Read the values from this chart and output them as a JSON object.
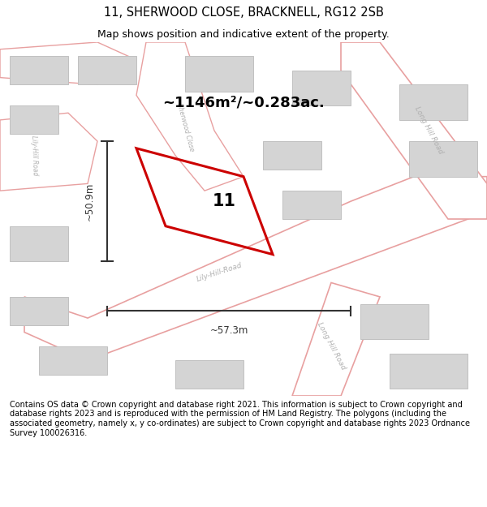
{
  "title": "11, SHERWOOD CLOSE, BRACKNELL, RG12 2SB",
  "subtitle": "Map shows position and indicative extent of the property.",
  "footer": "Contains OS data © Crown copyright and database right 2021. This information is subject to Crown copyright and database rights 2023 and is reproduced with the permission of HM Land Registry. The polygons (including the associated geometry, namely x, y co-ordinates) are subject to Crown copyright and database rights 2023 Ordnance Survey 100026316.",
  "area_label": "~1146m²/~0.283ac.",
  "property_number": "11",
  "dim_width": "~57.3m",
  "dim_height": "~50.9m",
  "bg_color": "#ffffff",
  "map_bg": "#f2f2f2",
  "road_fill": "#ffffff",
  "road_stroke": "#e8a0a0",
  "building_fill": "#d4d4d4",
  "building_stroke": "#c0c0c0",
  "property_color": "#cc0000",
  "road_label_color": "#b0b0b0",
  "dim_color": "#333333",
  "title_fontsize": 10.5,
  "subtitle_fontsize": 9.0,
  "footer_fontsize": 7.0
}
